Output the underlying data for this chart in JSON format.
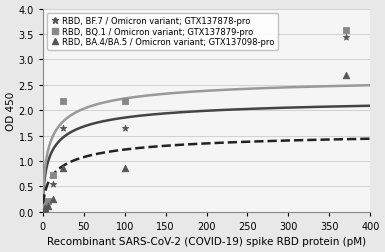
{
  "title": "",
  "xlabel": "Recombinant SARS-CoV-2 (COVID-19) spike RBD protein (pM)",
  "ylabel": "OD 450",
  "xlim": [
    0,
    400
  ],
  "ylim": [
    0,
    4
  ],
  "xticks": [
    0,
    50,
    100,
    150,
    200,
    250,
    300,
    350,
    400
  ],
  "yticks": [
    0,
    0.5,
    1,
    1.5,
    2,
    2.5,
    3,
    3.5,
    4
  ],
  "series": [
    {
      "label": "RBD, BF.7 / Omicron variant; GTX137878-pro",
      "marker": "*",
      "marker_color": "#555555",
      "line_style": "-",
      "line_color": "#444444",
      "data_x": [
        1.56,
        3.13,
        6.25,
        12.5,
        25,
        100,
        370
      ],
      "data_y": [
        0.05,
        0.08,
        0.15,
        0.55,
        1.65,
        1.65,
        3.45
      ],
      "Vmax": 2.3,
      "K": 10,
      "n": 0.62
    },
    {
      "label": "RBD, BQ.1 / Omicron variant; GTX137879-pro",
      "marker": "s",
      "marker_color": "#888888",
      "line_style": "-",
      "line_color": "#999999",
      "data_x": [
        1.56,
        3.13,
        6.25,
        12.5,
        25,
        100,
        370
      ],
      "data_y": [
        0.06,
        0.1,
        0.22,
        0.72,
        2.18,
        2.18,
        3.57
      ],
      "Vmax": 2.72,
      "K": 9,
      "n": 0.63
    },
    {
      "label": "RBD, BA.4/BA.5 / Omicron variant; GTX137098-pro",
      "marker": "^",
      "marker_color": "#555555",
      "line_style": "--",
      "line_color": "#222222",
      "data_x": [
        1.56,
        3.13,
        6.25,
        12.5,
        25,
        100,
        370
      ],
      "data_y": [
        0.04,
        0.07,
        0.12,
        0.25,
        0.87,
        0.87,
        2.7
      ],
      "Vmax": 1.65,
      "K": 18,
      "n": 0.62
    }
  ],
  "legend_loc": "upper left",
  "legend_fontsize": 6.0,
  "axis_fontsize": 7.5,
  "tick_fontsize": 7,
  "figure_facecolor": "#e8e8e8",
  "axes_facecolor": "#f5f5f5"
}
